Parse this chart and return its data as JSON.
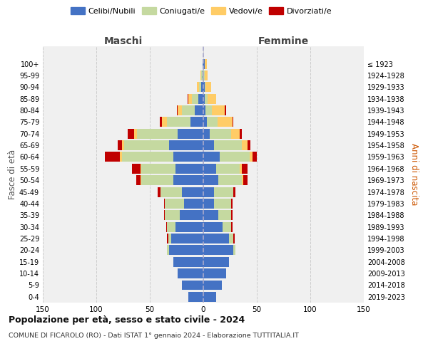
{
  "age_groups": [
    "0-4",
    "5-9",
    "10-14",
    "15-19",
    "20-24",
    "25-29",
    "30-34",
    "35-39",
    "40-44",
    "45-49",
    "50-54",
    "55-59",
    "60-64",
    "65-69",
    "70-74",
    "75-79",
    "80-84",
    "85-89",
    "90-94",
    "95-99",
    "100+"
  ],
  "birth_years": [
    "2019-2023",
    "2014-2018",
    "2009-2013",
    "2004-2008",
    "1999-2003",
    "1994-1998",
    "1989-1993",
    "1984-1988",
    "1979-1983",
    "1974-1978",
    "1969-1973",
    "1964-1968",
    "1959-1963",
    "1954-1958",
    "1949-1953",
    "1944-1948",
    "1939-1943",
    "1934-1938",
    "1929-1933",
    "1924-1928",
    "≤ 1923"
  ],
  "male": {
    "celibi": [
      14,
      20,
      24,
      28,
      32,
      30,
      26,
      22,
      18,
      20,
      28,
      26,
      28,
      32,
      24,
      12,
      8,
      5,
      2,
      1,
      1
    ],
    "coniugati": [
      0,
      0,
      0,
      0,
      2,
      3,
      8,
      14,
      18,
      20,
      30,
      32,
      48,
      42,
      38,
      22,
      12,
      6,
      2,
      1,
      0
    ],
    "vedovi": [
      0,
      0,
      0,
      0,
      0,
      0,
      0,
      0,
      0,
      0,
      1,
      1,
      2,
      2,
      3,
      5,
      4,
      3,
      2,
      1,
      0
    ],
    "divorziati": [
      0,
      0,
      0,
      0,
      0,
      1,
      1,
      1,
      1,
      3,
      4,
      8,
      14,
      4,
      6,
      2,
      1,
      1,
      0,
      0,
      0
    ]
  },
  "female": {
    "nubili": [
      12,
      17,
      21,
      24,
      28,
      24,
      18,
      14,
      10,
      10,
      14,
      12,
      15,
      10,
      6,
      3,
      2,
      1,
      1,
      0,
      1
    ],
    "coniugate": [
      0,
      0,
      0,
      0,
      2,
      4,
      8,
      12,
      16,
      18,
      22,
      22,
      28,
      26,
      20,
      10,
      6,
      3,
      1,
      1,
      0
    ],
    "vedove": [
      0,
      0,
      0,
      0,
      0,
      0,
      0,
      0,
      0,
      0,
      1,
      2,
      3,
      5,
      8,
      14,
      12,
      8,
      5,
      3,
      2
    ],
    "divorziate": [
      0,
      0,
      0,
      0,
      0,
      1,
      1,
      1,
      1,
      2,
      4,
      5,
      4,
      3,
      2,
      1,
      1,
      0,
      0,
      0,
      0
    ]
  },
  "colors": {
    "celibi_nubili": "#4472C4",
    "coniugati": "#C5D9A0",
    "vedovi": "#FFCC66",
    "divorziati": "#C00000"
  },
  "title": "Popolazione per età, sesso e stato civile - 2024",
  "subtitle": "COMUNE DI FICAROLO (RO) - Dati ISTAT 1° gennaio 2024 - Elaborazione TUTTITALIA.IT",
  "xlabel_left": "Maschi",
  "xlabel_right": "Femmine",
  "ylabel": "Fasce di età",
  "ylabel_right": "Anni di nascita",
  "xlim": 150,
  "legend_labels": [
    "Celibi/Nubili",
    "Coniugati/e",
    "Vedovi/e",
    "Divorziati/e"
  ],
  "background_color": "#ffffff",
  "plot_bg": "#f0f0f0",
  "grid_color": "#cccccc"
}
